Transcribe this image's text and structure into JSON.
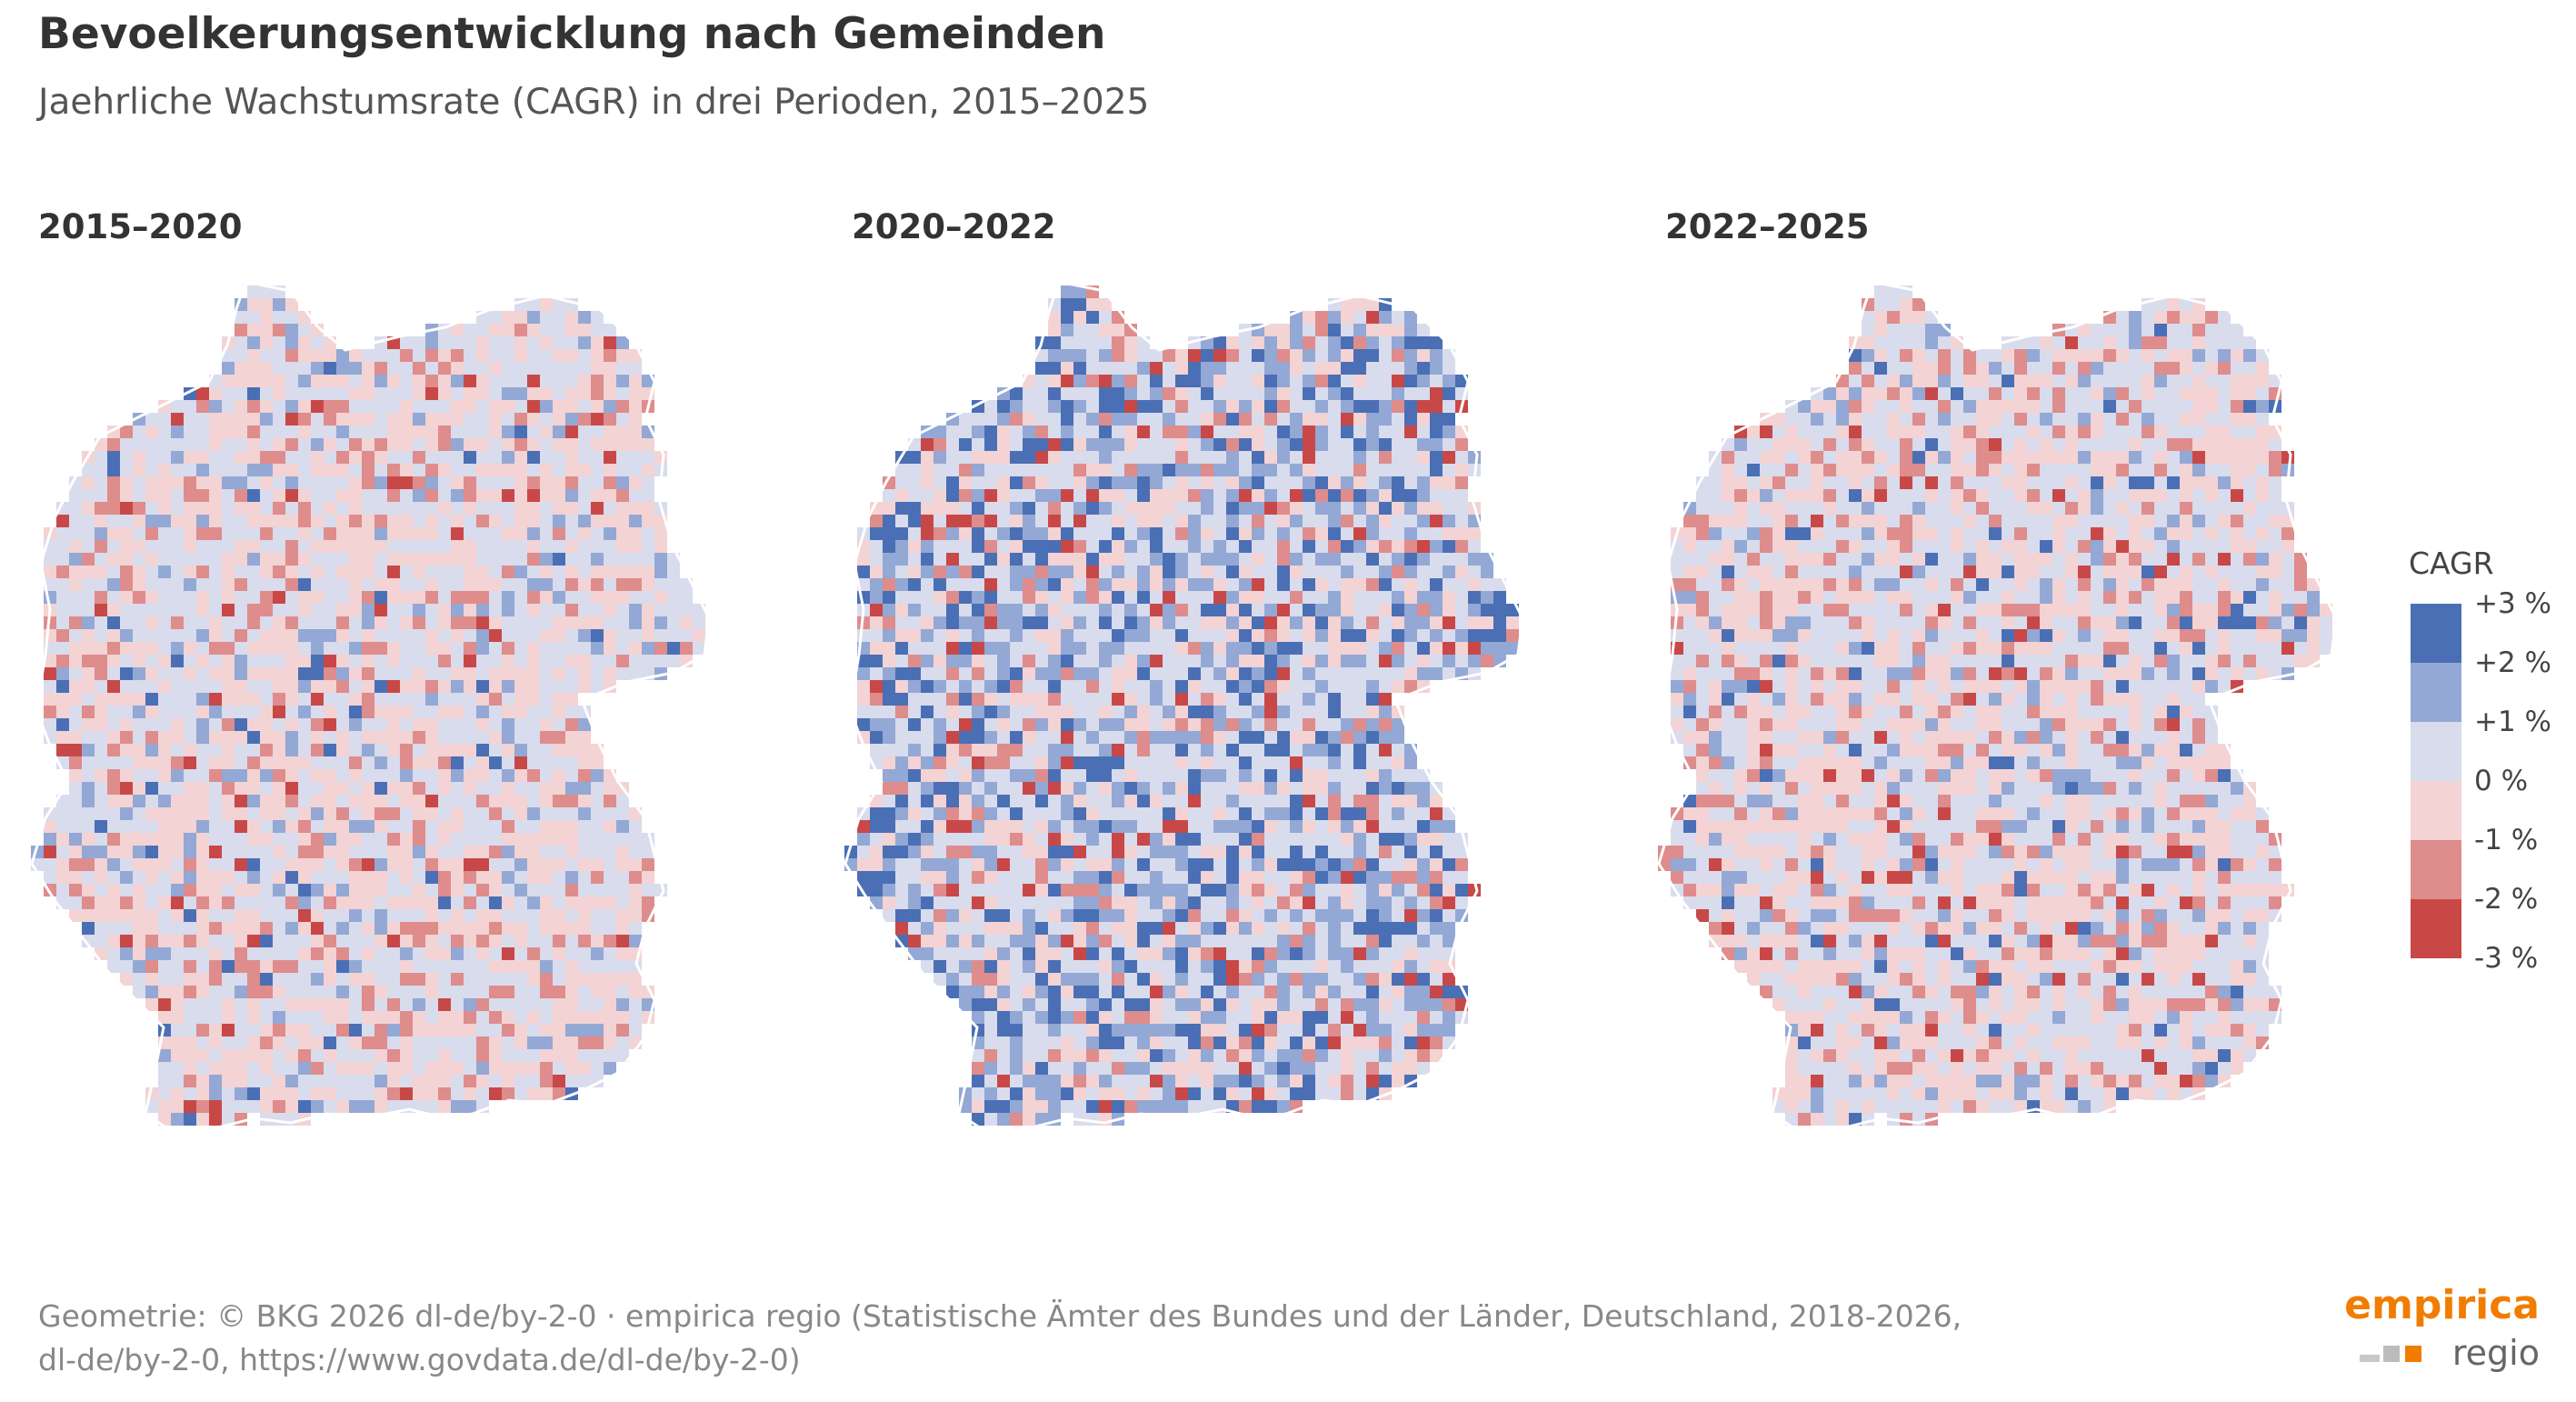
{
  "header": {
    "title": "Bevoelkerungsentwicklung nach Gemeinden",
    "subtitle": "Jaehrliche Wachstumsrate (CAGR) in drei Perioden, 2015–2025"
  },
  "panels": [
    {
      "title": "2015–2020"
    },
    {
      "title": "2020–2022"
    },
    {
      "title": "2022–2025"
    }
  ],
  "legend": {
    "title": "CAGR",
    "ticks": [
      "+3 %",
      "+2 %",
      "+1 %",
      "0 %",
      "-1 %",
      "-2 %",
      "-3 %"
    ],
    "colors": [
      "#4a6fb5",
      "#93a8d4",
      "#d8dced",
      "#f3d3d3",
      "#de8c8c",
      "#c84848"
    ]
  },
  "footer": {
    "line1": "Geometrie: © BKG 2026 dl-de/by-2-0 · empirica regio (Statistische Ämter des Bundes und der Länder, Deutschland, 2018-2026,",
    "line2": "dl-de/by-2-0, https://www.govdata.de/dl-de/by-2-0)"
  },
  "logo": {
    "brand": "empirica",
    "product": "regio",
    "brand_color": "#f07d00"
  }
}
